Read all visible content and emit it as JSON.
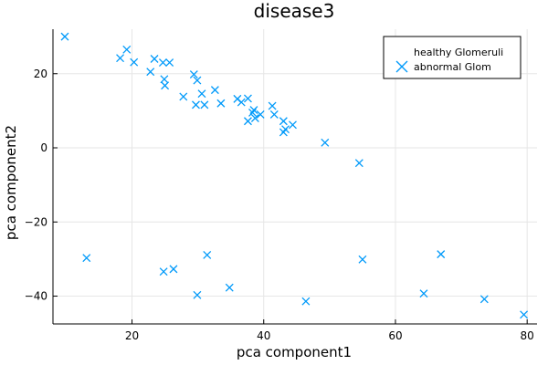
{
  "chart_data": {
    "type": "scatter",
    "title": "disease3",
    "xlabel": "pca component1",
    "ylabel": "pca component2",
    "xlim": [
      8.0,
      81.5
    ],
    "ylim": [
      -47.5,
      32.0
    ],
    "xticks": [
      20,
      40,
      60,
      80
    ],
    "yticks": [
      -40,
      -20,
      0,
      20
    ],
    "grid": true,
    "legend_position": "top-right",
    "series": [
      {
        "name": "healthy Glomeruli",
        "marker": "none",
        "color": "#009AFA",
        "points": []
      },
      {
        "name": "abnormal Glom",
        "marker": "x",
        "color": "#009AFA",
        "points": [
          [
            9.8,
            30.0
          ],
          [
            19.2,
            26.5
          ],
          [
            18.2,
            24.2
          ],
          [
            23.4,
            24.0
          ],
          [
            20.3,
            23.1
          ],
          [
            24.7,
            23.0
          ],
          [
            25.7,
            23.0
          ],
          [
            22.8,
            20.5
          ],
          [
            29.4,
            19.8
          ],
          [
            29.9,
            18.2
          ],
          [
            24.9,
            18.5
          ],
          [
            25.0,
            16.8
          ],
          [
            32.6,
            15.6
          ],
          [
            30.6,
            14.6
          ],
          [
            27.8,
            13.8
          ],
          [
            36.0,
            13.2
          ],
          [
            37.6,
            13.3
          ],
          [
            36.6,
            12.3
          ],
          [
            33.5,
            12.0
          ],
          [
            29.7,
            11.6
          ],
          [
            31.0,
            11.6
          ],
          [
            41.3,
            11.3
          ],
          [
            38.5,
            10.2
          ],
          [
            38.3,
            9.5
          ],
          [
            39.5,
            9.0
          ],
          [
            41.6,
            9.0
          ],
          [
            38.7,
            8.0
          ],
          [
            37.6,
            7.2
          ],
          [
            43.0,
            7.2
          ],
          [
            44.4,
            6.2
          ],
          [
            43.3,
            5.0
          ],
          [
            43.0,
            4.2
          ],
          [
            49.3,
            1.4
          ],
          [
            54.5,
            -4.1
          ],
          [
            13.1,
            -29.7
          ],
          [
            31.4,
            -28.9
          ],
          [
            26.3,
            -32.7
          ],
          [
            24.8,
            -33.4
          ],
          [
            55.0,
            -30.1
          ],
          [
            66.9,
            -28.7
          ],
          [
            34.8,
            -37.7
          ],
          [
            29.9,
            -39.7
          ],
          [
            46.4,
            -41.4
          ],
          [
            64.3,
            -39.3
          ],
          [
            73.5,
            -40.8
          ],
          [
            79.5,
            -45.0
          ]
        ]
      }
    ]
  }
}
